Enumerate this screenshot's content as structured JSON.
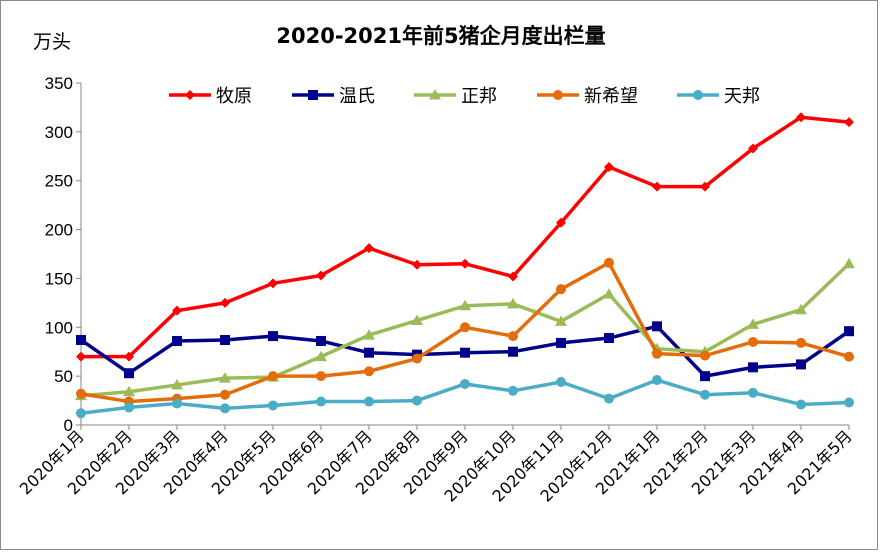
{
  "chart_data": {
    "type": "line",
    "title": "2020-2021年前5猪企月度出栏量",
    "ylabel": "万头",
    "xlabel": "",
    "ylim": [
      0,
      350
    ],
    "yticks": [
      0,
      50,
      100,
      150,
      200,
      250,
      300,
      350
    ],
    "grid": false,
    "legend": "top",
    "categories": [
      "2020年1月",
      "2020年2月",
      "2020年3月",
      "2020年4月",
      "2020年5月",
      "2020年6月",
      "2020年7月",
      "2020年8月",
      "2020年9月",
      "2020年10月",
      "2020年11月",
      "2020年12月",
      "2021年1月",
      "2021年2月",
      "2021年3月",
      "2021年4月",
      "2021年5月"
    ],
    "series": [
      {
        "name": "牧原",
        "color": "#ff0000",
        "marker": "diamond",
        "values": [
          70,
          70,
          117,
          125,
          145,
          153,
          181,
          164,
          165,
          152,
          207,
          264,
          244,
          244,
          283,
          315,
          310
        ]
      },
      {
        "name": "温氏",
        "color": "#00008b",
        "marker": "square",
        "values": [
          87,
          53,
          86,
          87,
          91,
          86,
          74,
          72,
          74,
          75,
          84,
          89,
          101,
          50,
          59,
          62,
          96
        ]
      },
      {
        "name": "正邦",
        "color": "#9bbb59",
        "marker": "triangle",
        "values": [
          30,
          34,
          41,
          48,
          49,
          70,
          92,
          107,
          122,
          124,
          106,
          134,
          78,
          75,
          103,
          118,
          165
        ]
      },
      {
        "name": "新希望",
        "color": "#e46c0a",
        "marker": "circle",
        "values": [
          32,
          24,
          27,
          31,
          50,
          50,
          55,
          68,
          100,
          91,
          139,
          166,
          73,
          71,
          85,
          84,
          70
        ]
      },
      {
        "name": "天邦",
        "color": "#4bacc6",
        "marker": "circle",
        "values": [
          12,
          18,
          22,
          17,
          20,
          24,
          24,
          25,
          42,
          35,
          44,
          27,
          46,
          31,
          33,
          21,
          23
        ]
      }
    ]
  }
}
